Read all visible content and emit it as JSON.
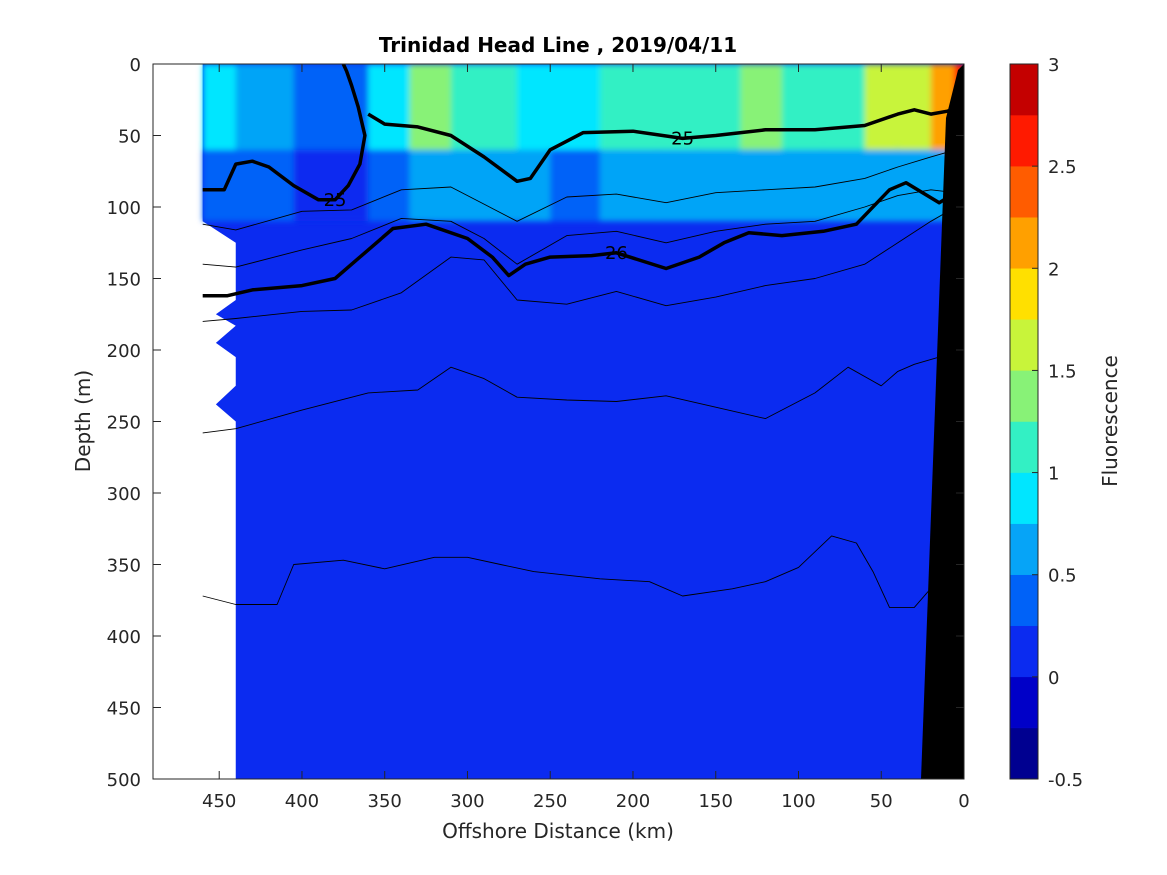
{
  "chart_data": {
    "type": "heatmap",
    "subtype": "filled-contour-section",
    "title": "Trinidad Head Line , 2019/04/11",
    "xlabel": "Offshore Distance (km)",
    "ylabel": "Depth (m)",
    "colorbar_label": "Fluorescence",
    "xlim": [
      490,
      0
    ],
    "x_reversed": true,
    "ylim": [
      0,
      500
    ],
    "y_reversed": true,
    "x_ticks": [
      450,
      400,
      350,
      300,
      250,
      200,
      150,
      100,
      50,
      0
    ],
    "y_ticks": [
      0,
      50,
      100,
      150,
      200,
      250,
      300,
      350,
      400,
      450,
      500
    ],
    "colorbar_ticks": [
      3,
      2.5,
      2,
      1.5,
      1,
      0.5,
      0,
      -0.5
    ],
    "colorbar_range": [
      -0.5,
      3
    ],
    "colorbar_levels": [
      -0.5,
      -0.25,
      0,
      0.25,
      0.5,
      0.75,
      1,
      1.25,
      1.5,
      1.75,
      2,
      2.25,
      2.5,
      2.75,
      3
    ],
    "colorbar_colors": [
      "#000090",
      "#0000c8",
      "#0b2bf0",
      "#0062f8",
      "#06a4f7",
      "#00e6ff",
      "#33f0c4",
      "#88f277",
      "#c8f43a",
      "#ffe000",
      "#ffa000",
      "#ff5c00",
      "#ff1a00",
      "#c40000"
    ],
    "data_extent_x": [
      460,
      0
    ],
    "background_value": 0.1,
    "near_surface_fluorescence": {
      "x": [
        460,
        420,
        390,
        370,
        350,
        320,
        300,
        280,
        260,
        240,
        200,
        170,
        150,
        120,
        100,
        70,
        50,
        30,
        10,
        2
      ],
      "values_0_to_70m": [
        0.8,
        0.55,
        0.25,
        0.3,
        0.9,
        1.3,
        1.05,
        1.0,
        0.95,
        0.9,
        1.0,
        1.1,
        1.0,
        1.25,
        1.0,
        1.2,
        1.5,
        1.6,
        2.2,
        2.6
      ]
    },
    "contours": [
      {
        "level": 25,
        "label": "25",
        "bold": true,
        "x": [
          460,
          447,
          440,
          430,
          420,
          405,
          390,
          380,
          372,
          365,
          362,
          366,
          370,
          373,
          375
        ],
        "y": [
          88,
          88,
          70,
          68,
          72,
          85,
          95,
          95,
          85,
          70,
          50,
          30,
          15,
          5,
          0
        ]
      },
      {
        "level": 25,
        "label": "25",
        "bold": true,
        "x": [
          360,
          350,
          330,
          310,
          290,
          270,
          262,
          250,
          230,
          200,
          170,
          150,
          120,
          90,
          60,
          40,
          30,
          20,
          10,
          2
        ],
        "y": [
          35,
          42,
          44,
          50,
          65,
          82,
          80,
          60,
          48,
          47,
          52,
          50,
          46,
          46,
          43,
          35,
          32,
          35,
          33,
          30
        ]
      },
      {
        "level": 26,
        "label": "26",
        "bold": true,
        "x": [
          460,
          445,
          430,
          400,
          380,
          365,
          345,
          325,
          300,
          285,
          275,
          265,
          250,
          225,
          210,
          180,
          160,
          145,
          130,
          110,
          85,
          65,
          45,
          35,
          25,
          15,
          5,
          2
        ],
        "y": [
          162,
          162,
          158,
          155,
          150,
          135,
          115,
          112,
          122,
          135,
          148,
          140,
          135,
          134,
          132,
          143,
          135,
          125,
          118,
          120,
          117,
          112,
          88,
          83,
          90,
          97,
          90,
          88
        ]
      },
      {
        "level": null,
        "label": "",
        "bold": false,
        "x": [
          460,
          440,
          400,
          370,
          340,
          310,
          290,
          270,
          240,
          210,
          180,
          150,
          120,
          90,
          60,
          40,
          20,
          5
        ],
        "y": [
          140,
          142,
          130,
          122,
          108,
          110,
          122,
          140,
          120,
          117,
          125,
          117,
          112,
          110,
          100,
          92,
          88,
          90
        ]
      },
      {
        "level": null,
        "label": "",
        "bold": false,
        "x": [
          460,
          440,
          400,
          370,
          340,
          310,
          290,
          270,
          240,
          210,
          180,
          150,
          120,
          90,
          60,
          40,
          20,
          5
        ],
        "y": [
          112,
          116,
          103,
          102,
          88,
          86,
          98,
          110,
          93,
          91,
          97,
          90,
          88,
          86,
          80,
          72,
          65,
          60
        ]
      },
      {
        "level": null,
        "label": "",
        "bold": false,
        "x": [
          460,
          440,
          400,
          370,
          340,
          310,
          290,
          270,
          240,
          210,
          180,
          150,
          120,
          90,
          60,
          40,
          20,
          5
        ],
        "y": [
          180,
          178,
          173,
          172,
          160,
          135,
          137,
          165,
          168,
          159,
          169,
          163,
          155,
          150,
          140,
          125,
          110,
          100
        ]
      },
      {
        "level": null,
        "label": "",
        "bold": false,
        "x": [
          460,
          440,
          400,
          360,
          330,
          310,
          290,
          270,
          240,
          210,
          180,
          150,
          120,
          90,
          70,
          50,
          40,
          30,
          15,
          5
        ],
        "y": [
          258,
          255,
          242,
          230,
          228,
          212,
          220,
          233,
          235,
          236,
          232,
          240,
          248,
          230,
          212,
          225,
          215,
          210,
          205,
          200
        ]
      },
      {
        "level": null,
        "label": "",
        "bold": false,
        "x": [
          460,
          440,
          415,
          405,
          375,
          350,
          320,
          300,
          280,
          260,
          220,
          190,
          170,
          140,
          120,
          100,
          80,
          65,
          55,
          45,
          30,
          15
        ],
        "y": [
          372,
          378,
          378,
          350,
          347,
          353,
          345,
          345,
          350,
          355,
          360,
          362,
          372,
          367,
          362,
          352,
          330,
          335,
          355,
          380,
          380,
          360
        ]
      }
    ]
  }
}
